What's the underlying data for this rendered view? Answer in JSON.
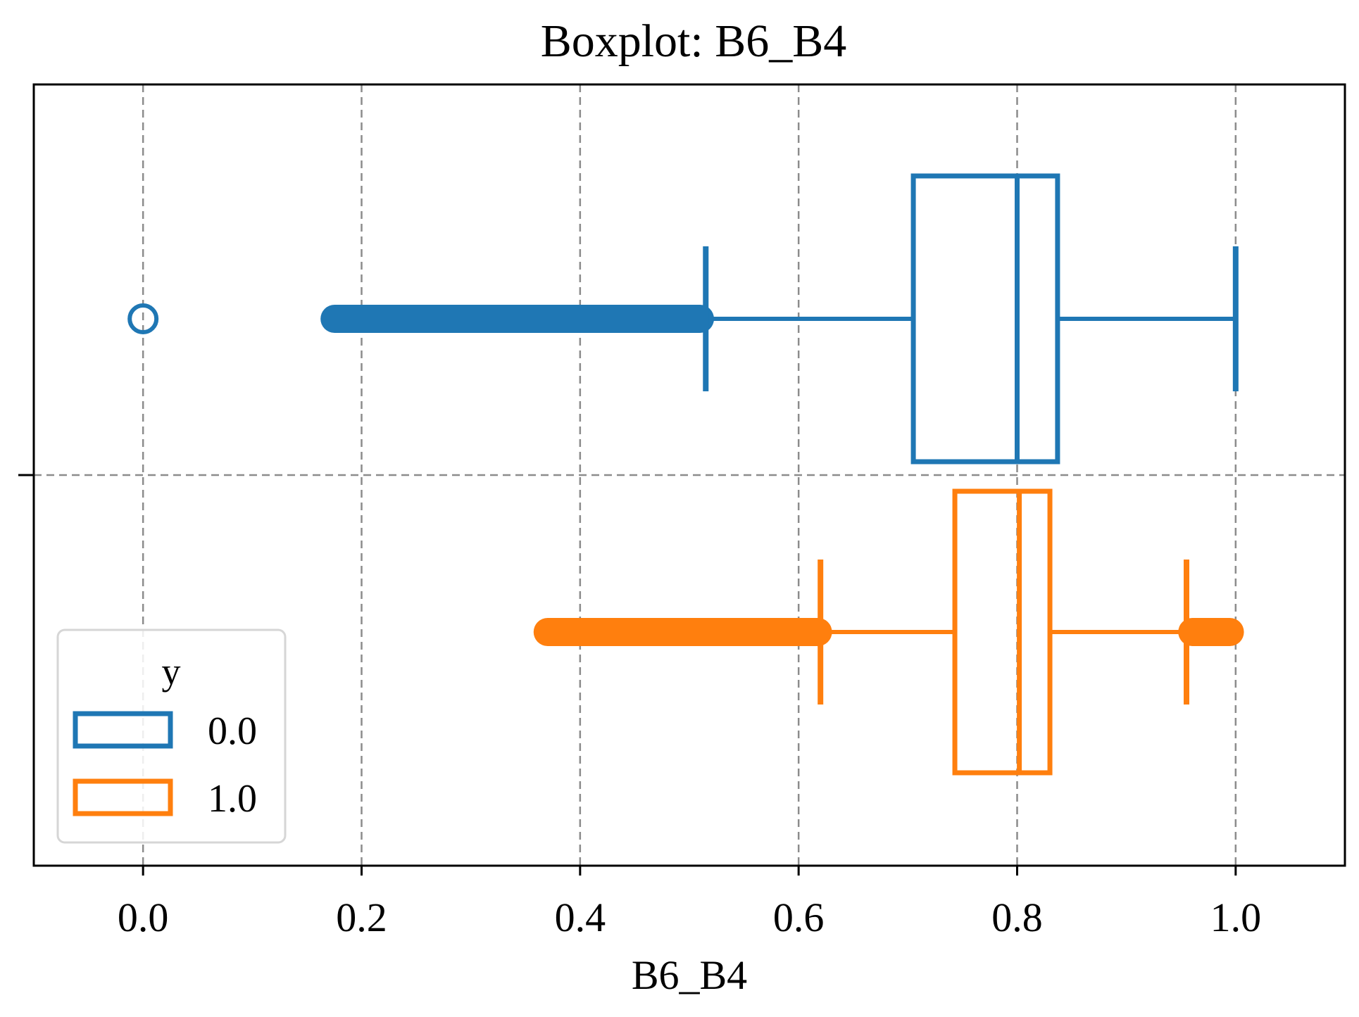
{
  "chart_data": {
    "type": "boxplot",
    "orientation": "horizontal",
    "title": "Boxplot: B6_B4",
    "xlabel": "B6_B4",
    "ylabel": "",
    "xlim": [
      -0.1,
      1.1
    ],
    "xticks": [
      0.0,
      0.2,
      0.4,
      0.6,
      0.8,
      1.0
    ],
    "xtick_labels": [
      "0.0",
      "0.2",
      "0.4",
      "0.6",
      "0.8",
      "1.0"
    ],
    "grid": true,
    "legend": {
      "title": "y",
      "position": "lower-left"
    },
    "series": [
      {
        "name": "0.0",
        "color": "#1f77b4",
        "q1": 0.705,
        "median": 0.8,
        "q3": 0.837,
        "whisker_low": 0.515,
        "whisker_high": 1.0,
        "outlier_bands": [
          [
            0.165,
            0.52
          ]
        ],
        "outliers": [
          0.0
        ]
      },
      {
        "name": "1.0",
        "color": "#ff7f0e",
        "q1": 0.743,
        "median": 0.802,
        "q3": 0.83,
        "whisker_low": 0.62,
        "whisker_high": 0.955,
        "outlier_bands": [
          [
            0.36,
            0.628
          ],
          [
            0.95,
            1.005
          ]
        ],
        "outliers": []
      }
    ]
  }
}
